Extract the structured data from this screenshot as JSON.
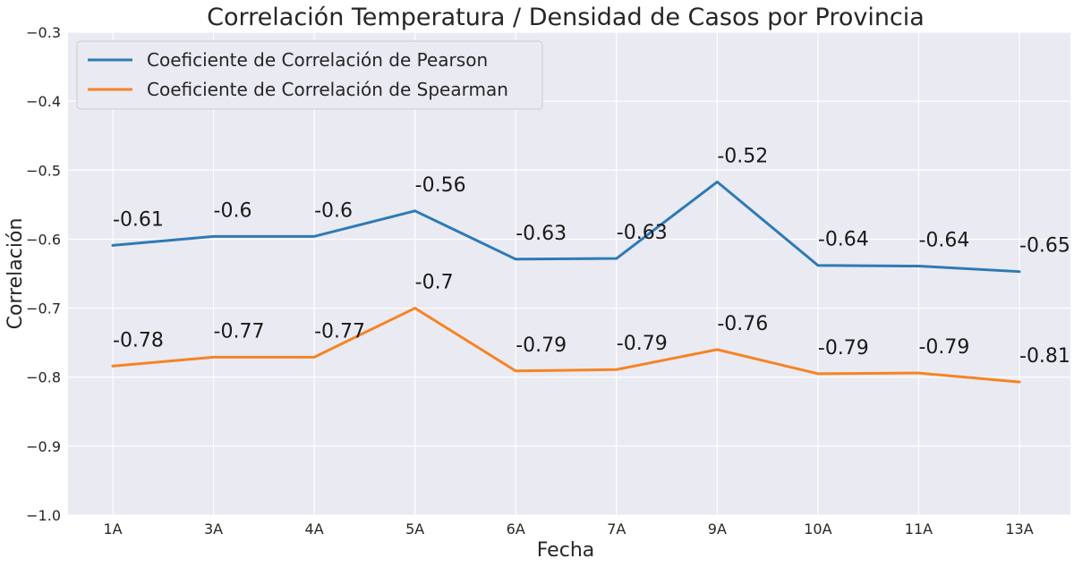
{
  "chart_data": {
    "type": "line",
    "title": "Correlación Temperatura / Densidad de Casos por Provincia",
    "xlabel": "Fecha",
    "ylabel": "Correlación",
    "categories": [
      "1A",
      "3A",
      "4A",
      "5A",
      "6A",
      "7A",
      "9A",
      "10A",
      "11A",
      "13A"
    ],
    "ylim": [
      -1.0,
      -0.3
    ],
    "yticks": [
      -0.3,
      -0.4,
      -0.5,
      -0.6,
      -0.7,
      -0.8,
      -0.9,
      -1.0
    ],
    "ytick_labels": [
      "−0.3",
      "−0.4",
      "−0.5",
      "−0.6",
      "−0.7",
      "−0.8",
      "−0.9",
      "−1.0"
    ],
    "grid": true,
    "legend_position": "top-left",
    "series": [
      {
        "name": "Coeficiente de Correlación de Pearson",
        "color": "#2e7ab6",
        "values": [
          -0.609,
          -0.596,
          -0.596,
          -0.559,
          -0.629,
          -0.628,
          -0.517,
          -0.638,
          -0.639,
          -0.647
        ],
        "labels": [
          "-0.61",
          "-0.6",
          "-0.6",
          "-0.56",
          "-0.63",
          "-0.63",
          "-0.52",
          "-0.64",
          "-0.64",
          "-0.65"
        ]
      },
      {
        "name": "Coeficiente de Correlación de Spearman",
        "color": "#f58425",
        "values": [
          -0.784,
          -0.771,
          -0.771,
          -0.7,
          -0.791,
          -0.789,
          -0.76,
          -0.795,
          -0.794,
          -0.807
        ],
        "labels": [
          "-0.78",
          "-0.77",
          "-0.77",
          "-0.7",
          "-0.79",
          "-0.79",
          "-0.76",
          "-0.79",
          "-0.79",
          "-0.81"
        ]
      }
    ]
  }
}
